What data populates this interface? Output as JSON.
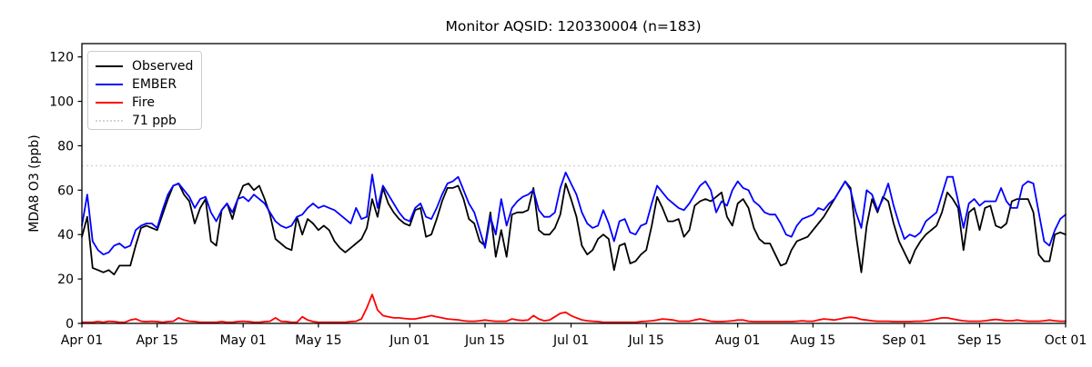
{
  "title": "Monitor AQSID: 120330004 (n=183)",
  "ylabel": "MDA8 O3 (ppb)",
  "legend": [
    {
      "label": "Observed",
      "color": "#000000",
      "style": "solid"
    },
    {
      "label": "EMBER",
      "color": "#0000ff",
      "style": "solid"
    },
    {
      "label": "Fire",
      "color": "#ff0000",
      "style": "solid"
    },
    {
      "label": "71 ppb",
      "color": "#d3d3d3",
      "style": "dotted"
    }
  ],
  "chart_data": {
    "type": "line",
    "title": "Monitor AQSID: 120330004 (n=183)",
    "xlabel": "",
    "ylabel": "MDA8 O3 (ppb)",
    "ylim": [
      0,
      126
    ],
    "y_ticks": [
      0,
      20,
      40,
      60,
      80,
      100,
      120
    ],
    "x_unit": "days since Apr 01",
    "x_tick_days": [
      0,
      14,
      30,
      44,
      61,
      75,
      91,
      105,
      122,
      136,
      153,
      167,
      183
    ],
    "x_tick_labels": [
      "Apr 01",
      "Apr 15",
      "May 01",
      "May 15",
      "Jun 01",
      "Jun 15",
      "Jul 01",
      "Jul 15",
      "Aug 01",
      "Aug 15",
      "Sep 01",
      "Sep 15",
      "Oct 01"
    ],
    "grid": false,
    "legend_position": "upper left",
    "threshold": {
      "value": 71,
      "label": "71 ppb",
      "color": "#d3d3d3",
      "style": "dotted"
    },
    "series": [
      {
        "name": "Observed",
        "color": "#000000",
        "values": [
          39,
          48,
          25,
          24,
          23,
          24,
          22,
          26,
          26,
          26,
          35,
          43,
          44,
          43,
          42,
          49,
          56,
          62,
          63,
          58,
          55,
          45,
          52,
          56,
          37,
          35,
          51,
          54,
          47,
          56,
          62,
          63,
          60,
          62,
          56,
          49,
          38,
          36,
          34,
          33,
          48,
          40,
          47,
          45,
          42,
          44,
          42,
          37,
          34,
          32,
          34,
          36,
          38,
          43,
          56,
          48,
          61,
          54,
          50,
          47,
          45,
          44,
          51,
          52,
          39,
          40,
          47,
          55,
          61,
          61,
          62,
          56,
          47,
          45,
          37,
          35,
          50,
          30,
          42,
          30,
          49,
          50,
          50,
          51,
          61,
          42,
          40,
          40,
          43,
          49,
          63,
          56,
          48,
          35,
          31,
          33,
          38,
          40,
          38,
          24,
          35,
          36,
          27,
          28,
          31,
          33,
          44,
          57,
          52,
          46,
          46,
          47,
          39,
          42,
          53,
          55,
          56,
          55,
          57,
          59,
          48,
          44,
          54,
          56,
          52,
          43,
          38,
          36,
          36,
          31,
          26,
          27,
          33,
          37,
          38,
          39,
          42,
          45,
          48,
          52,
          56,
          60,
          64,
          61,
          40,
          23,
          44,
          56,
          50,
          57,
          55,
          45,
          37,
          32,
          27,
          33,
          37,
          40,
          42,
          44,
          50,
          59,
          56,
          52,
          33,
          50,
          52,
          42,
          52,
          53,
          44,
          43,
          45,
          55,
          56,
          56,
          56,
          50,
          31,
          28,
          28,
          40,
          41,
          40
        ]
      },
      {
        "name": "EMBER",
        "color": "#0000ff",
        "values": [
          44,
          58,
          37,
          33,
          31,
          32,
          35,
          36,
          34,
          35,
          42,
          44,
          45,
          45,
          43,
          51,
          58,
          62,
          63,
          60,
          57,
          52,
          56,
          57,
          50,
          46,
          51,
          54,
          50,
          56,
          57,
          55,
          58,
          56,
          54,
          50,
          46,
          44,
          43,
          44,
          48,
          49,
          52,
          54,
          52,
          53,
          52,
          51,
          49,
          47,
          45,
          52,
          47,
          48,
          67,
          52,
          62,
          58,
          54,
          50,
          47,
          46,
          52,
          54,
          48,
          47,
          52,
          58,
          63,
          64,
          66,
          60,
          54,
          50,
          42,
          34,
          48,
          40,
          56,
          44,
          52,
          55,
          57,
          58,
          60,
          51,
          48,
          48,
          50,
          61,
          68,
          63,
          58,
          50,
          45,
          43,
          44,
          51,
          45,
          37,
          46,
          47,
          41,
          40,
          44,
          45,
          54,
          62,
          59,
          56,
          54,
          52,
          51,
          54,
          58,
          62,
          64,
          60,
          50,
          55,
          53,
          60,
          64,
          61,
          60,
          55,
          53,
          50,
          49,
          49,
          45,
          40,
          39,
          44,
          47,
          48,
          49,
          52,
          51,
          54,
          56,
          60,
          64,
          60,
          50,
          43,
          60,
          58,
          51,
          56,
          63,
          53,
          45,
          38,
          40,
          39,
          41,
          46,
          48,
          50,
          58,
          66,
          66,
          55,
          43,
          54,
          56,
          53,
          55,
          55,
          55,
          61,
          55,
          52,
          52,
          62,
          64,
          63,
          50,
          37,
          35,
          42,
          47,
          49
        ]
      },
      {
        "name": "Fire",
        "color": "#ff0000",
        "values": [
          0.5,
          0.5,
          0.5,
          0.8,
          0.5,
          1,
          0.8,
          0.5,
          0.5,
          1.5,
          2,
          1,
          0.8,
          1,
          0.8,
          0.5,
          0.8,
          1,
          2.5,
          1.5,
          1,
          0.8,
          0.5,
          0.5,
          0.5,
          0.5,
          0.8,
          0.5,
          0.5,
          0.8,
          1,
          0.8,
          0.5,
          0.5,
          0.8,
          1,
          2.5,
          1,
          0.8,
          0.5,
          0.5,
          3,
          1.5,
          0.8,
          0.5,
          0.5,
          0.5,
          0.5,
          0.5,
          0.5,
          0.8,
          1,
          2,
          7,
          13,
          6,
          3.5,
          3,
          2.5,
          2.5,
          2.2,
          2,
          2,
          2.5,
          3,
          3.5,
          3,
          2.5,
          2,
          1.8,
          1.6,
          1.2,
          1,
          1,
          1.2,
          1.5,
          1.2,
          1,
          1,
          1,
          2,
          1.5,
          1.3,
          1.5,
          3.5,
          2,
          1.2,
          1.5,
          3,
          4.5,
          5,
          3.5,
          2.5,
          1.6,
          1.2,
          1,
          0.8,
          0.5,
          0.5,
          0.5,
          0.5,
          0.5,
          0.5,
          0.5,
          0.8,
          1,
          1.2,
          1.5,
          2,
          1.8,
          1.5,
          1,
          1,
          1,
          1.5,
          2,
          1.5,
          1,
          0.8,
          0.8,
          1,
          1.2,
          1.5,
          1.5,
          1,
          0.8,
          0.8,
          0.8,
          0.8,
          0.8,
          0.8,
          0.8,
          0.8,
          1,
          1.2,
          1,
          1,
          1.5,
          2,
          1.8,
          1.5,
          2,
          2.5,
          2.8,
          2.5,
          1.8,
          1.5,
          1.2,
          1,
          1,
          1,
          0.8,
          0.8,
          0.8,
          0.8,
          1,
          1,
          1.2,
          1.5,
          2,
          2.5,
          2.5,
          2,
          1.5,
          1.2,
          1,
          1,
          1,
          1.2,
          1.5,
          1.8,
          1.5,
          1.2,
          1.2,
          1.5,
          1.2,
          1,
          1,
          1,
          1.2,
          1.5,
          1.2,
          1,
          1
        ]
      }
    ]
  }
}
